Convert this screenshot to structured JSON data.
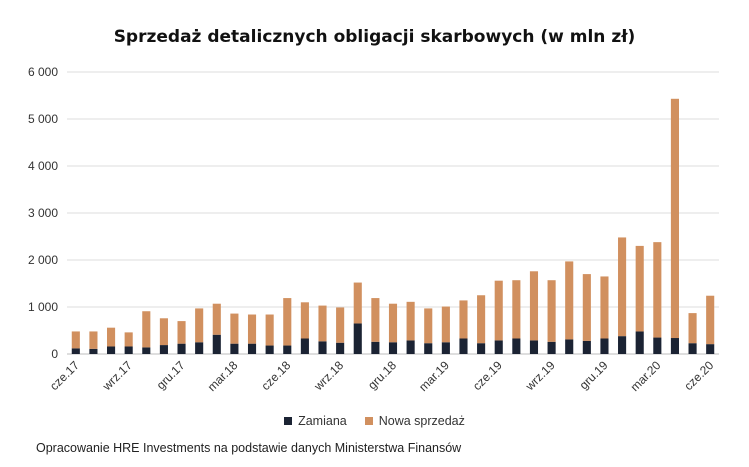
{
  "chart_data": {
    "type": "bar",
    "stacked": true,
    "title": "Sprzedaż detalicznych obligacji skarbowych (w mln zł)",
    "xlabel": "",
    "ylabel": "",
    "ylim": [
      0,
      6000
    ],
    "yticks": [
      0,
      1000,
      2000,
      3000,
      4000,
      5000,
      6000
    ],
    "ytick_labels": [
      "0",
      "1 000",
      "2 000",
      "3 000",
      "4 000",
      "5 000",
      "6 000"
    ],
    "categories": [
      "cze.17",
      "lip.17",
      "sie.17",
      "wrz.17",
      "paź.17",
      "lis.17",
      "gru.17",
      "sty.18",
      "lut.18",
      "mar.18",
      "kwi.18",
      "maj.18",
      "cze.18",
      "lip.18",
      "sie.18",
      "wrz.18",
      "paź.18",
      "lis.18",
      "gru.18",
      "sty.19",
      "lut.19",
      "mar.19",
      "kwi.19",
      "maj.19",
      "cze.19",
      "lip.19",
      "sie.19",
      "wrz.19",
      "paź.19",
      "lis.19",
      "gru.19",
      "sty.20",
      "lut.20",
      "mar.20",
      "kwi.20",
      "maj.20",
      "cze.20"
    ],
    "xtick_labels": [
      "cze.17",
      "wrz.17",
      "gru.17",
      "mar.18",
      "cze.18",
      "wrz.18",
      "gru.18",
      "mar.19",
      "cze.19",
      "wrz.19",
      "gru.19",
      "mar.20",
      "cze.20"
    ],
    "xtick_every": 3,
    "series": [
      {
        "name": "Zamiana",
        "color": "#1b2333",
        "values": [
          120,
          110,
          160,
          160,
          140,
          190,
          220,
          250,
          410,
          220,
          220,
          180,
          180,
          330,
          270,
          240,
          650,
          260,
          250,
          290,
          230,
          250,
          330,
          230,
          290,
          330,
          290,
          260,
          310,
          280,
          330,
          380,
          480,
          350,
          340,
          230,
          210
        ]
      },
      {
        "name": "Nowa sprzedaż",
        "color": "#d1905f",
        "values": [
          360,
          370,
          400,
          300,
          770,
          570,
          480,
          720,
          660,
          640,
          620,
          660,
          1010,
          770,
          760,
          750,
          870,
          930,
          820,
          820,
          740,
          760,
          810,
          1020,
          1270,
          1240,
          1470,
          1310,
          1660,
          1420,
          1320,
          2100,
          1820,
          2030,
          5090,
          640,
          1030
        ]
      }
    ],
    "legend": {
      "position": "bottom",
      "entries": [
        "Zamiana",
        "Nowa sprzedaż"
      ]
    },
    "grid": true
  },
  "footnote": "Opracowanie HRE Investments na podstawie danych Ministerstwa Finansów"
}
